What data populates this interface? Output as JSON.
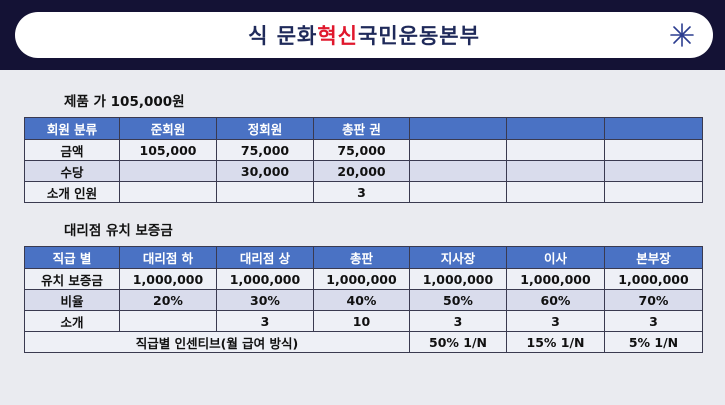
{
  "header": {
    "title_part1": "식 문화 ",
    "title_highlight": "혁신",
    "title_part2": "국민운동본부"
  },
  "product_section": {
    "label": "제품 가 105,000원",
    "headers": [
      "회원 분류",
      "준회원",
      "정회원",
      "총판 권",
      "",
      "",
      ""
    ],
    "rows": [
      [
        "금액",
        "105,000",
        "75,000",
        "75,000",
        "",
        "",
        ""
      ],
      [
        "수당",
        "",
        "30,000",
        "20,000",
        "",
        "",
        ""
      ],
      [
        "소개 인원",
        "",
        "",
        "3",
        "",
        "",
        ""
      ]
    ]
  },
  "deposit_section": {
    "label": "대리점 유치 보증금",
    "headers": [
      "직급 별",
      "대리점 하",
      "대리점 상",
      "총판",
      "지사장",
      "이사",
      "본부장"
    ],
    "rows": [
      [
        "유치 보증금",
        "1,000,000",
        "1,000,000",
        "1,000,000",
        "1,000,000",
        "1,000,000",
        "1,000,000"
      ],
      [
        "비율",
        "20%",
        "30%",
        "40%",
        "50%",
        "60%",
        "70%"
      ],
      [
        "소개",
        "",
        "3",
        "10",
        "3",
        "3",
        "3"
      ]
    ],
    "incentive_row": {
      "label": "직급별 인센티브(월 급여 방식)",
      "values": [
        "50% 1/N",
        "15% 1/N",
        "5% 1/N"
      ]
    }
  }
}
